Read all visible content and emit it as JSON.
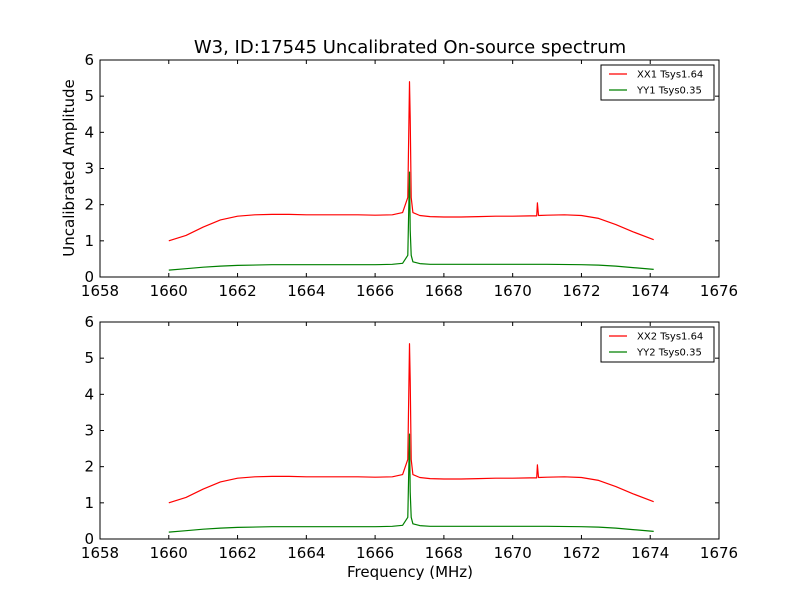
{
  "chart_data": [
    {
      "type": "line",
      "title": "W3, ID:17545 Uncalibrated On-source spectrum",
      "xlabel": "",
      "ylabel": "Uncalibrated Amplitude",
      "xlim": [
        1658,
        1676
      ],
      "ylim": [
        0,
        6
      ],
      "xticks": [
        "1658",
        "1660",
        "1662",
        "1664",
        "1666",
        "1668",
        "1670",
        "1672",
        "1674",
        "1676"
      ],
      "yticks": [
        "0",
        "1",
        "2",
        "3",
        "4",
        "5",
        "6"
      ],
      "legend_position": "top-right",
      "series": [
        {
          "name": "XX1 Tsys1.64",
          "color": "#ff0000",
          "x": [
            1660,
            1660.5,
            1661,
            1661.5,
            1662,
            1662.5,
            1663,
            1663.5,
            1664,
            1664.5,
            1665,
            1665.5,
            1666,
            1666.5,
            1666.8,
            1666.95,
            1667.0,
            1667.02,
            1667.05,
            1667.1,
            1667.3,
            1667.6,
            1668,
            1668.5,
            1669,
            1669.5,
            1670,
            1670.5,
            1670.7,
            1670.72,
            1670.75,
            1671,
            1671.5,
            1672,
            1672.5,
            1673,
            1673.5,
            1674.1
          ],
          "y": [
            1.0,
            1.15,
            1.38,
            1.58,
            1.68,
            1.72,
            1.73,
            1.73,
            1.72,
            1.72,
            1.72,
            1.72,
            1.71,
            1.72,
            1.78,
            2.2,
            5.4,
            4.4,
            2.2,
            1.78,
            1.7,
            1.67,
            1.66,
            1.66,
            1.67,
            1.68,
            1.68,
            1.69,
            1.69,
            2.05,
            1.7,
            1.71,
            1.72,
            1.7,
            1.62,
            1.45,
            1.25,
            1.03
          ]
        },
        {
          "name": "YY1 Tsys0.35",
          "color": "#008000",
          "x": [
            1660,
            1660.5,
            1661,
            1661.5,
            1662,
            1663,
            1664,
            1665,
            1666,
            1666.5,
            1666.8,
            1666.95,
            1667.0,
            1667.02,
            1667.05,
            1667.1,
            1667.3,
            1667.6,
            1668,
            1669,
            1670,
            1671,
            1672,
            1672.5,
            1673,
            1673.5,
            1674.1
          ],
          "y": [
            0.19,
            0.23,
            0.27,
            0.3,
            0.32,
            0.34,
            0.34,
            0.34,
            0.34,
            0.35,
            0.38,
            0.6,
            2.9,
            1.3,
            0.6,
            0.42,
            0.37,
            0.35,
            0.35,
            0.35,
            0.35,
            0.35,
            0.34,
            0.33,
            0.3,
            0.26,
            0.21
          ]
        }
      ]
    },
    {
      "type": "line",
      "title": "",
      "xlabel": "Frequency (MHz)",
      "ylabel": "",
      "xlim": [
        1658,
        1676
      ],
      "ylim": [
        0,
        6
      ],
      "xticks": [
        "1658",
        "1660",
        "1662",
        "1664",
        "1666",
        "1668",
        "1670",
        "1672",
        "1674",
        "1676"
      ],
      "yticks": [
        "0",
        "1",
        "2",
        "3",
        "4",
        "5",
        "6"
      ],
      "legend_position": "top-right",
      "series": [
        {
          "name": "XX2 Tsys1.64",
          "color": "#ff0000",
          "x": [
            1660,
            1660.5,
            1661,
            1661.5,
            1662,
            1662.5,
            1663,
            1663.5,
            1664,
            1664.5,
            1665,
            1665.5,
            1666,
            1666.5,
            1666.8,
            1666.95,
            1667.0,
            1667.02,
            1667.05,
            1667.1,
            1667.3,
            1667.6,
            1668,
            1668.5,
            1669,
            1669.5,
            1670,
            1670.5,
            1670.7,
            1670.72,
            1670.75,
            1671,
            1671.5,
            1672,
            1672.5,
            1673,
            1673.5,
            1674.1
          ],
          "y": [
            1.0,
            1.15,
            1.38,
            1.58,
            1.68,
            1.72,
            1.73,
            1.73,
            1.72,
            1.72,
            1.72,
            1.72,
            1.71,
            1.72,
            1.78,
            2.2,
            5.4,
            4.4,
            2.2,
            1.78,
            1.7,
            1.67,
            1.66,
            1.66,
            1.67,
            1.68,
            1.68,
            1.69,
            1.69,
            2.05,
            1.7,
            1.71,
            1.72,
            1.7,
            1.62,
            1.45,
            1.25,
            1.03
          ]
        },
        {
          "name": "YY2 Tsys0.35",
          "color": "#008000",
          "x": [
            1660,
            1660.5,
            1661,
            1661.5,
            1662,
            1663,
            1664,
            1665,
            1666,
            1666.5,
            1666.8,
            1666.95,
            1667.0,
            1667.02,
            1667.05,
            1667.1,
            1667.3,
            1667.6,
            1668,
            1669,
            1670,
            1671,
            1672,
            1672.5,
            1673,
            1673.5,
            1674.1
          ],
          "y": [
            0.19,
            0.23,
            0.27,
            0.3,
            0.32,
            0.34,
            0.34,
            0.34,
            0.34,
            0.35,
            0.38,
            0.6,
            2.9,
            1.3,
            0.6,
            0.42,
            0.37,
            0.35,
            0.35,
            0.35,
            0.35,
            0.35,
            0.34,
            0.33,
            0.3,
            0.26,
            0.21
          ]
        }
      ]
    }
  ]
}
